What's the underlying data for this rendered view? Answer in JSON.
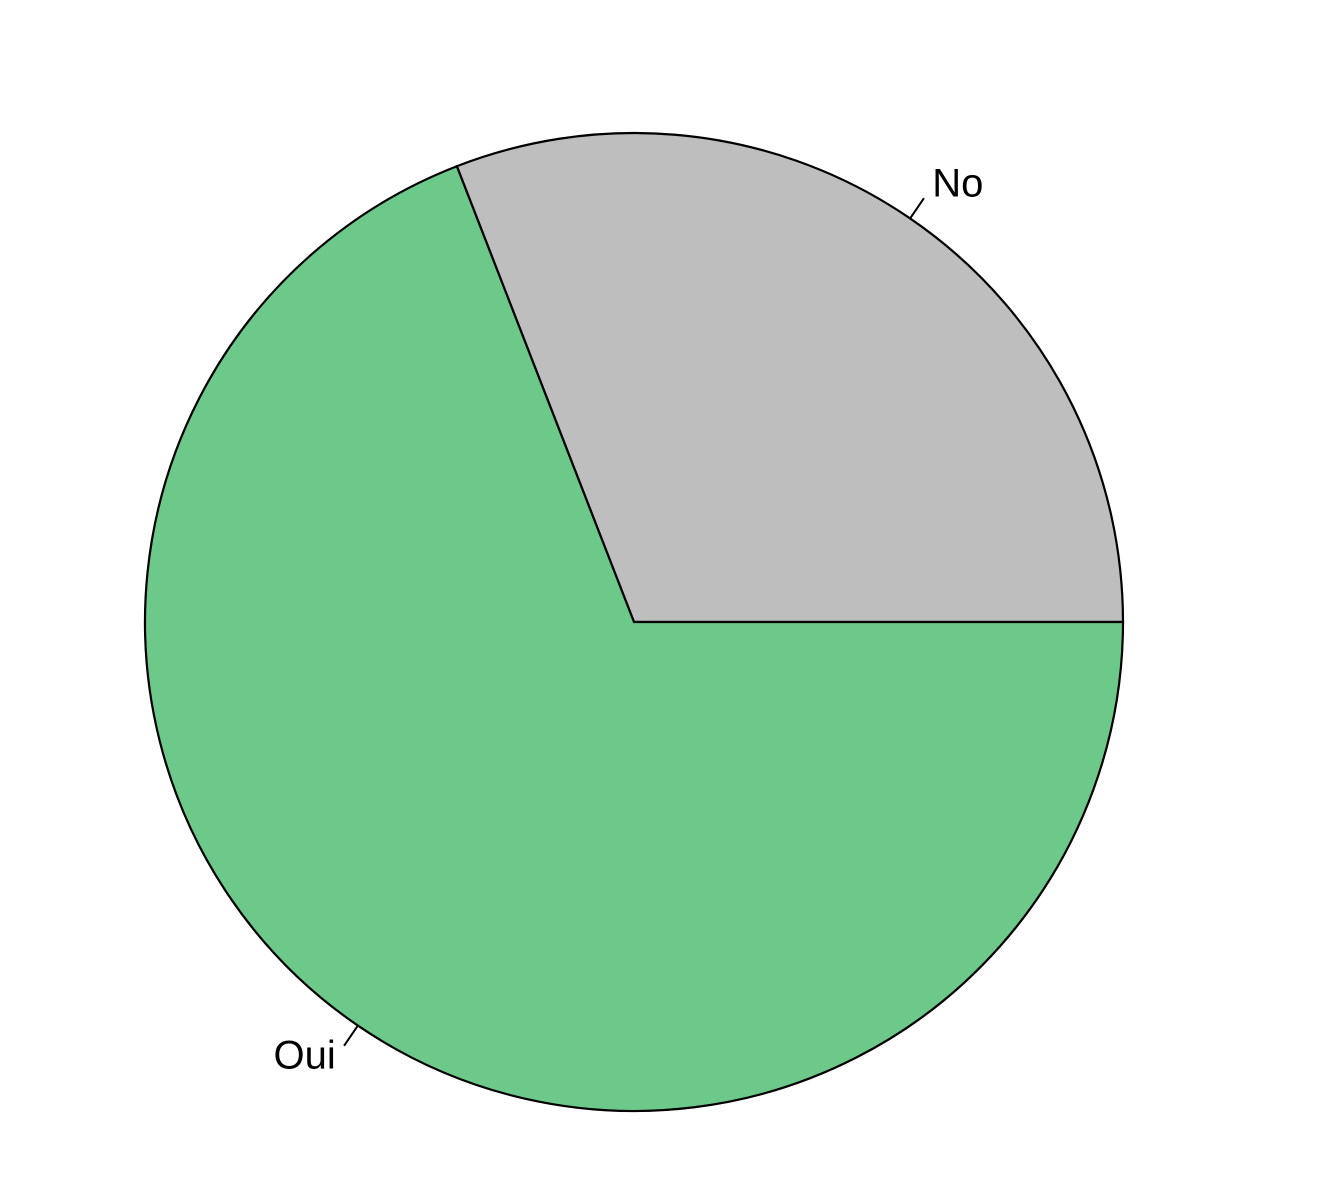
{
  "chart_data": {
    "type": "pie",
    "title": "",
    "start": "3 o'clock",
    "direction": "counterclockwise",
    "slices": [
      {
        "label": "No",
        "value": 30.9,
        "color": "#bebebe"
      },
      {
        "label": "Oui",
        "value": 69.1,
        "color": "#6dc98a"
      }
    ]
  }
}
